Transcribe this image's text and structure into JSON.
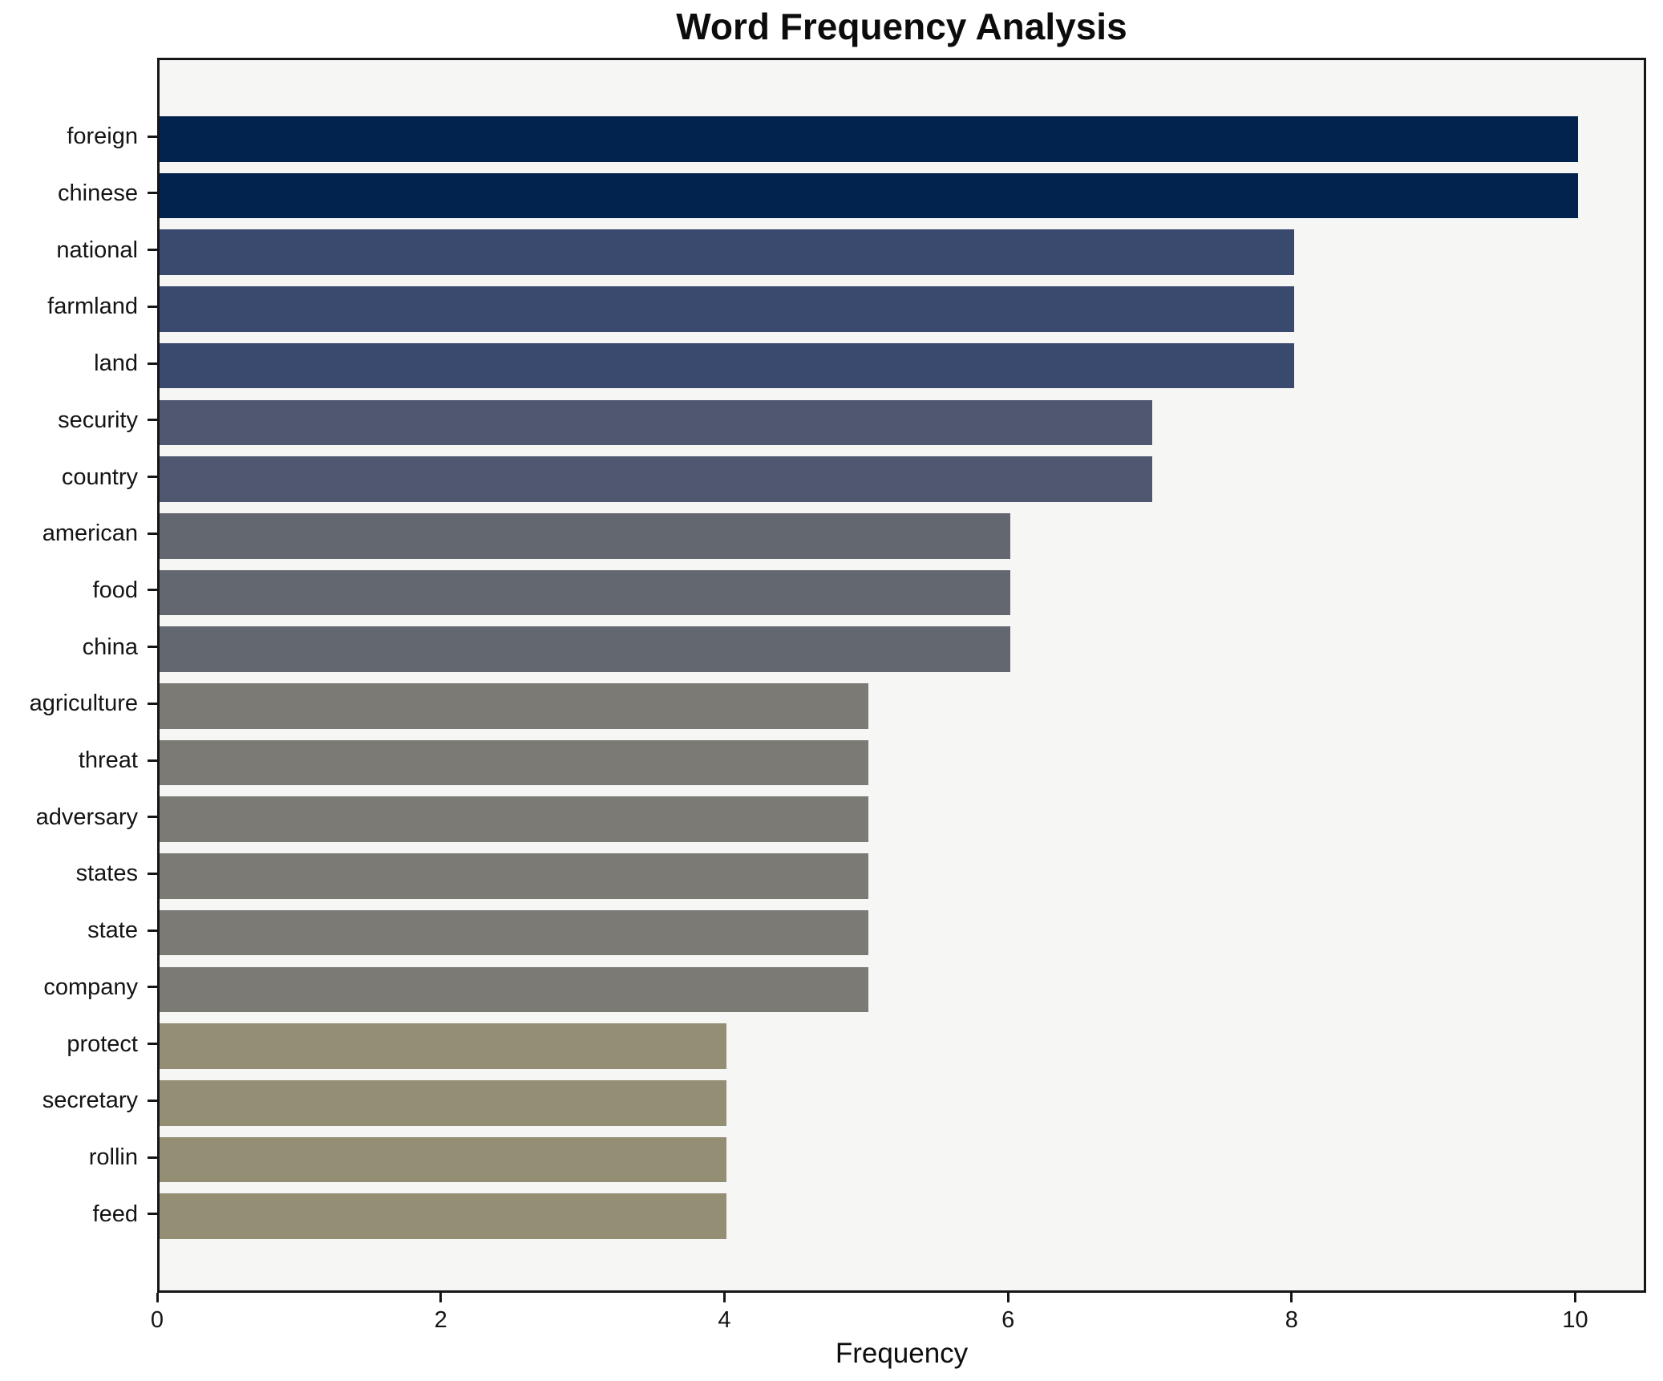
{
  "chart_data": {
    "type": "bar",
    "orientation": "horizontal",
    "title": "Word Frequency Analysis",
    "xlabel": "Frequency",
    "ylabel": "",
    "categories": [
      "foreign",
      "chinese",
      "national",
      "farmland",
      "land",
      "security",
      "country",
      "american",
      "food",
      "china",
      "agriculture",
      "threat",
      "adversary",
      "states",
      "state",
      "company",
      "protect",
      "secretary",
      "rollin",
      "feed"
    ],
    "values": [
      10,
      10,
      8,
      8,
      8,
      7,
      7,
      6,
      6,
      6,
      5,
      5,
      5,
      5,
      5,
      5,
      4,
      4,
      4,
      4
    ],
    "bar_colors": [
      "#02234d",
      "#02234d",
      "#394a6e",
      "#394a6e",
      "#394a6e",
      "#4f5870",
      "#4f5870",
      "#63676f",
      "#63676f",
      "#63676f",
      "#7b7a75",
      "#7b7a75",
      "#7b7a75",
      "#7b7a75",
      "#7b7a75",
      "#7b7a75",
      "#948e74",
      "#948e74",
      "#948e74",
      "#948e74"
    ],
    "xticks": [
      0,
      2,
      4,
      6,
      8,
      10
    ],
    "xlim": [
      0,
      10.5
    ],
    "grid": false,
    "legend": null,
    "bar_fraction": 0.8,
    "axis_margin_fraction": 1.1,
    "plot_bg": "#f6f6f5",
    "figure_bg": "#ffffff",
    "spine_color": "#161616",
    "text_color": "#141414"
  }
}
